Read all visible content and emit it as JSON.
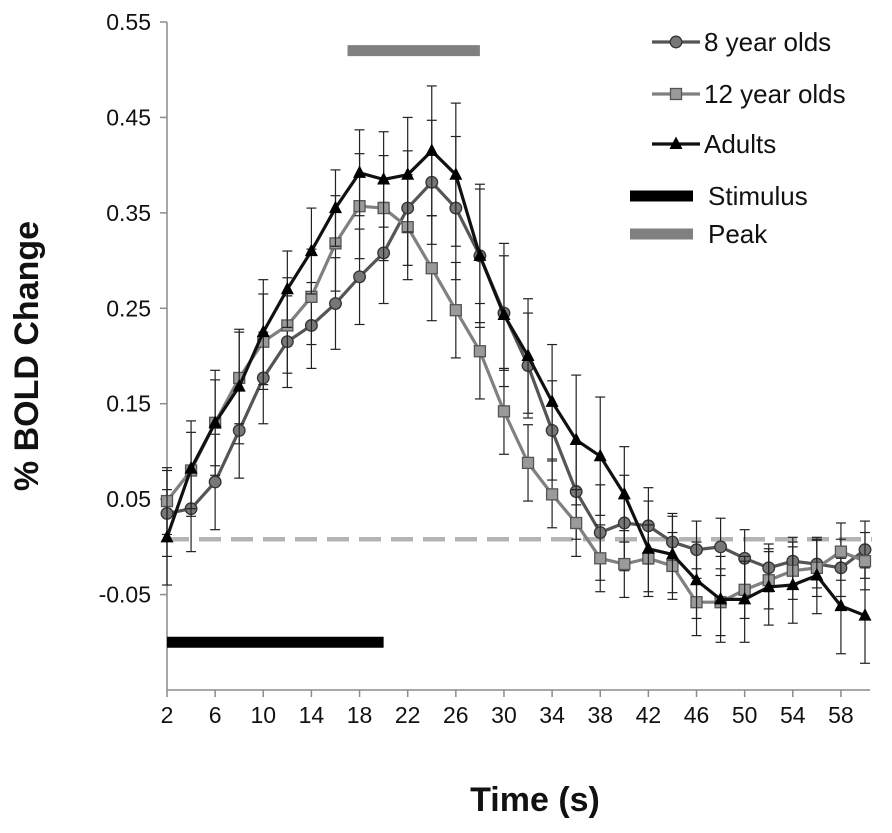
{
  "chart_data": {
    "type": "line",
    "title": "",
    "xlabel": "Time (s)",
    "ylabel": "% BOLD Change",
    "xlim": [
      2,
      60
    ],
    "ylim": [
      -0.15,
      0.55
    ],
    "x_ticks": [
      2,
      6,
      10,
      14,
      18,
      22,
      26,
      30,
      34,
      38,
      42,
      46,
      50,
      54,
      58
    ],
    "x_tick_labels": [
      "2",
      "6",
      "10",
      "14",
      "18",
      "22",
      "26",
      "30",
      "34",
      "38",
      "42",
      "46",
      "50",
      "54",
      "58"
    ],
    "y_ticks": [
      -0.05,
      0.05,
      0.15,
      0.25,
      0.35,
      0.45,
      0.55
    ],
    "y_tick_labels": [
      "-0.05",
      "0.05",
      "0.15",
      "0.25",
      "0.35",
      "0.45",
      "0.55"
    ],
    "x": [
      2,
      4,
      6,
      8,
      10,
      12,
      14,
      16,
      18,
      20,
      22,
      24,
      26,
      28,
      30,
      32,
      34,
      36,
      38,
      40,
      42,
      44,
      46,
      48,
      50,
      52,
      54,
      56,
      58,
      60
    ],
    "series": [
      {
        "name": "8 year olds",
        "marker": "circle",
        "color": "#555555",
        "values": [
          0.035,
          0.04,
          0.068,
          0.122,
          0.177,
          0.215,
          0.232,
          0.255,
          0.283,
          0.308,
          0.355,
          0.382,
          0.355,
          0.305,
          0.245,
          0.19,
          0.122,
          0.058,
          0.015,
          0.025,
          0.022,
          0.005,
          -0.003,
          0.0,
          -0.012,
          -0.022,
          -0.015,
          -0.018,
          -0.022,
          -0.003
        ],
        "errors": [
          0.045,
          0.045,
          0.05,
          0.05,
          0.048,
          0.048,
          0.045,
          0.048,
          0.05,
          0.053,
          0.06,
          0.065,
          0.075,
          0.07,
          0.06,
          0.055,
          0.052,
          0.05,
          0.05,
          0.05,
          0.04,
          0.03,
          0.03,
          0.03,
          0.03,
          0.025,
          0.025,
          0.025,
          0.03,
          0.03
        ]
      },
      {
        "name": "12 year olds",
        "marker": "square",
        "color": "#808080",
        "values": [
          0.048,
          0.08,
          0.13,
          0.177,
          0.215,
          0.232,
          0.262,
          0.318,
          0.357,
          0.355,
          0.335,
          0.292,
          0.248,
          0.205,
          0.142,
          0.088,
          0.055,
          0.025,
          -0.012,
          -0.018,
          -0.012,
          -0.02,
          -0.058,
          -0.058,
          -0.045,
          -0.035,
          -0.025,
          -0.022,
          -0.005,
          -0.015
        ],
        "errors": [
          0.035,
          0.04,
          0.045,
          0.048,
          0.05,
          0.05,
          0.05,
          0.05,
          0.055,
          0.055,
          0.055,
          0.055,
          0.05,
          0.05,
          0.045,
          0.04,
          0.035,
          0.035,
          0.035,
          0.035,
          0.035,
          0.035,
          0.035,
          0.035,
          0.03,
          0.03,
          0.03,
          0.03,
          0.03,
          0.03
        ]
      },
      {
        "name": "Adults",
        "marker": "triangle",
        "color": "#111111",
        "values": [
          0.01,
          0.082,
          0.13,
          0.168,
          0.225,
          0.27,
          0.31,
          0.355,
          0.392,
          0.385,
          0.39,
          0.415,
          0.39,
          0.305,
          0.243,
          0.2,
          0.152,
          0.112,
          0.095,
          0.055,
          -0.002,
          -0.008,
          -0.035,
          -0.055,
          -0.055,
          -0.042,
          -0.04,
          -0.03,
          -0.062,
          -0.072
        ],
        "errors": [
          0.05,
          0.05,
          0.055,
          0.06,
          0.055,
          0.04,
          0.045,
          0.04,
          0.045,
          0.05,
          0.06,
          0.068,
          0.075,
          0.075,
          0.075,
          0.06,
          0.06,
          0.068,
          0.062,
          0.05,
          0.05,
          0.04,
          0.04,
          0.045,
          0.045,
          0.04,
          0.04,
          0.04,
          0.05,
          0.05
        ]
      }
    ],
    "baseline": {
      "name": "baseline",
      "y": 0.008,
      "color": "#b4b4b4",
      "style": "dashed"
    },
    "bars": [
      {
        "name": "Stimulus",
        "x_start": 2,
        "x_end": 20,
        "y": -0.1,
        "color": "#000000"
      },
      {
        "name": "Peak",
        "x_start": 17,
        "x_end": 28,
        "y": 0.52,
        "color": "#808080"
      }
    ],
    "legend": {
      "position": "top-right",
      "entries": [
        {
          "label": "8 year olds",
          "kind": "circle",
          "color": "#555555"
        },
        {
          "label": "12 year olds",
          "kind": "square",
          "color": "#808080"
        },
        {
          "label": "Adults",
          "kind": "triangle",
          "color": "#111111"
        },
        {
          "label": "Stimulus",
          "kind": "bar",
          "color": "#000000"
        },
        {
          "label": "Peak",
          "kind": "bar",
          "color": "#808080"
        }
      ]
    },
    "grid": false
  }
}
